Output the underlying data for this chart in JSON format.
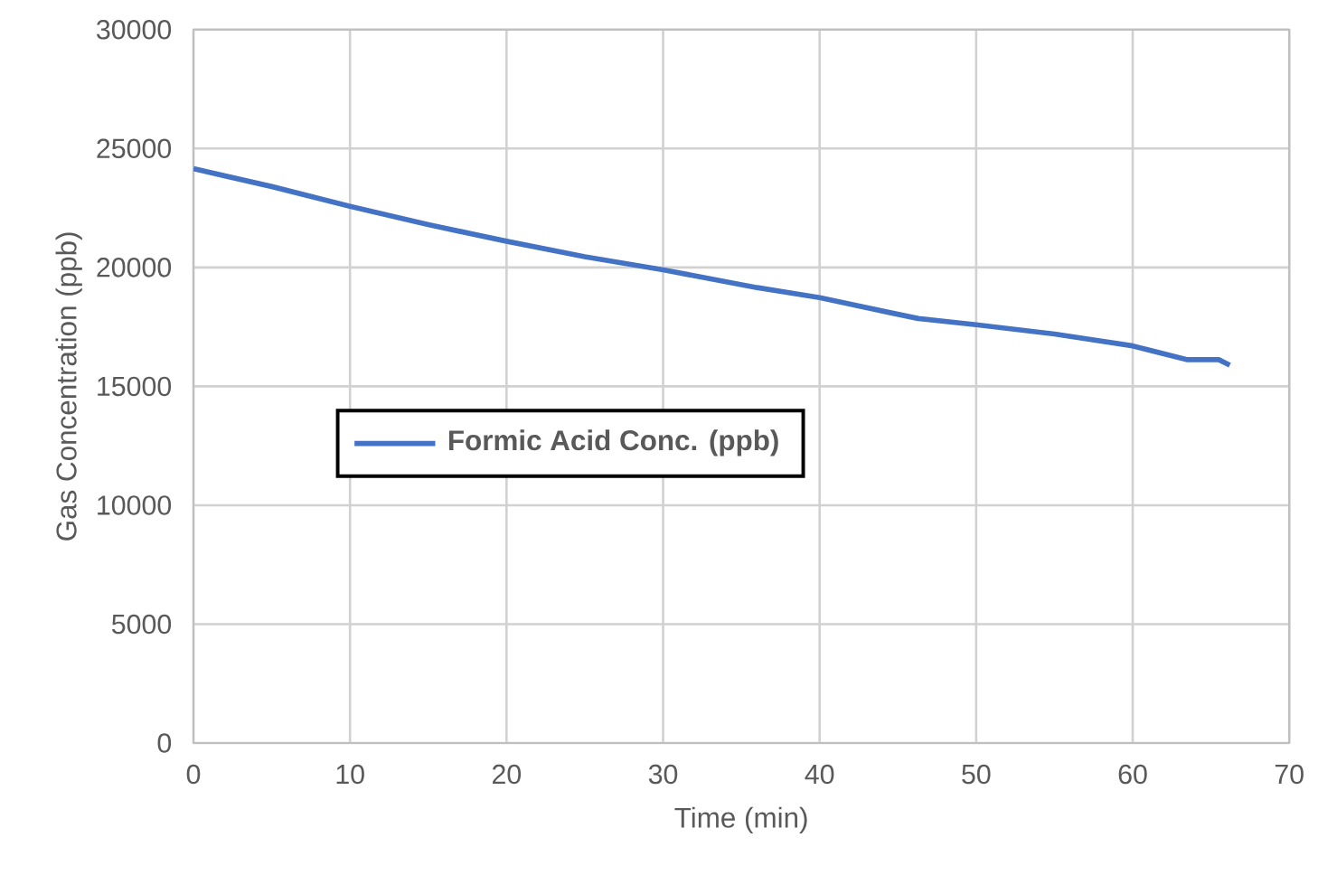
{
  "chart_data": {
    "type": "line",
    "xlabel": "Time (min)",
    "ylabel": "Gas Concentration (ppb)",
    "x": [
      0,
      5,
      10,
      15,
      20,
      25,
      30,
      36,
      40,
      44.5,
      46.3,
      50,
      55,
      60,
      63.5,
      65.5,
      66.2
    ],
    "series": [
      {
        "name": "Formic Acid Conc. (ppb)",
        "color": "#4472c4",
        "values": [
          24150,
          23400,
          22570,
          21800,
          21100,
          20450,
          19900,
          19150,
          18730,
          18100,
          17850,
          17590,
          17200,
          16700,
          16120,
          16120,
          15890
        ]
      }
    ],
    "xlim": [
      0,
      70
    ],
    "ylim": [
      0,
      30000
    ],
    "xticks": [
      0,
      10,
      20,
      30,
      40,
      50,
      60,
      70
    ],
    "yticks": [
      0,
      5000,
      10000,
      15000,
      20000,
      25000,
      30000
    ],
    "grid": true,
    "legend": "left",
    "marker": "none",
    "line_style": "solid"
  }
}
